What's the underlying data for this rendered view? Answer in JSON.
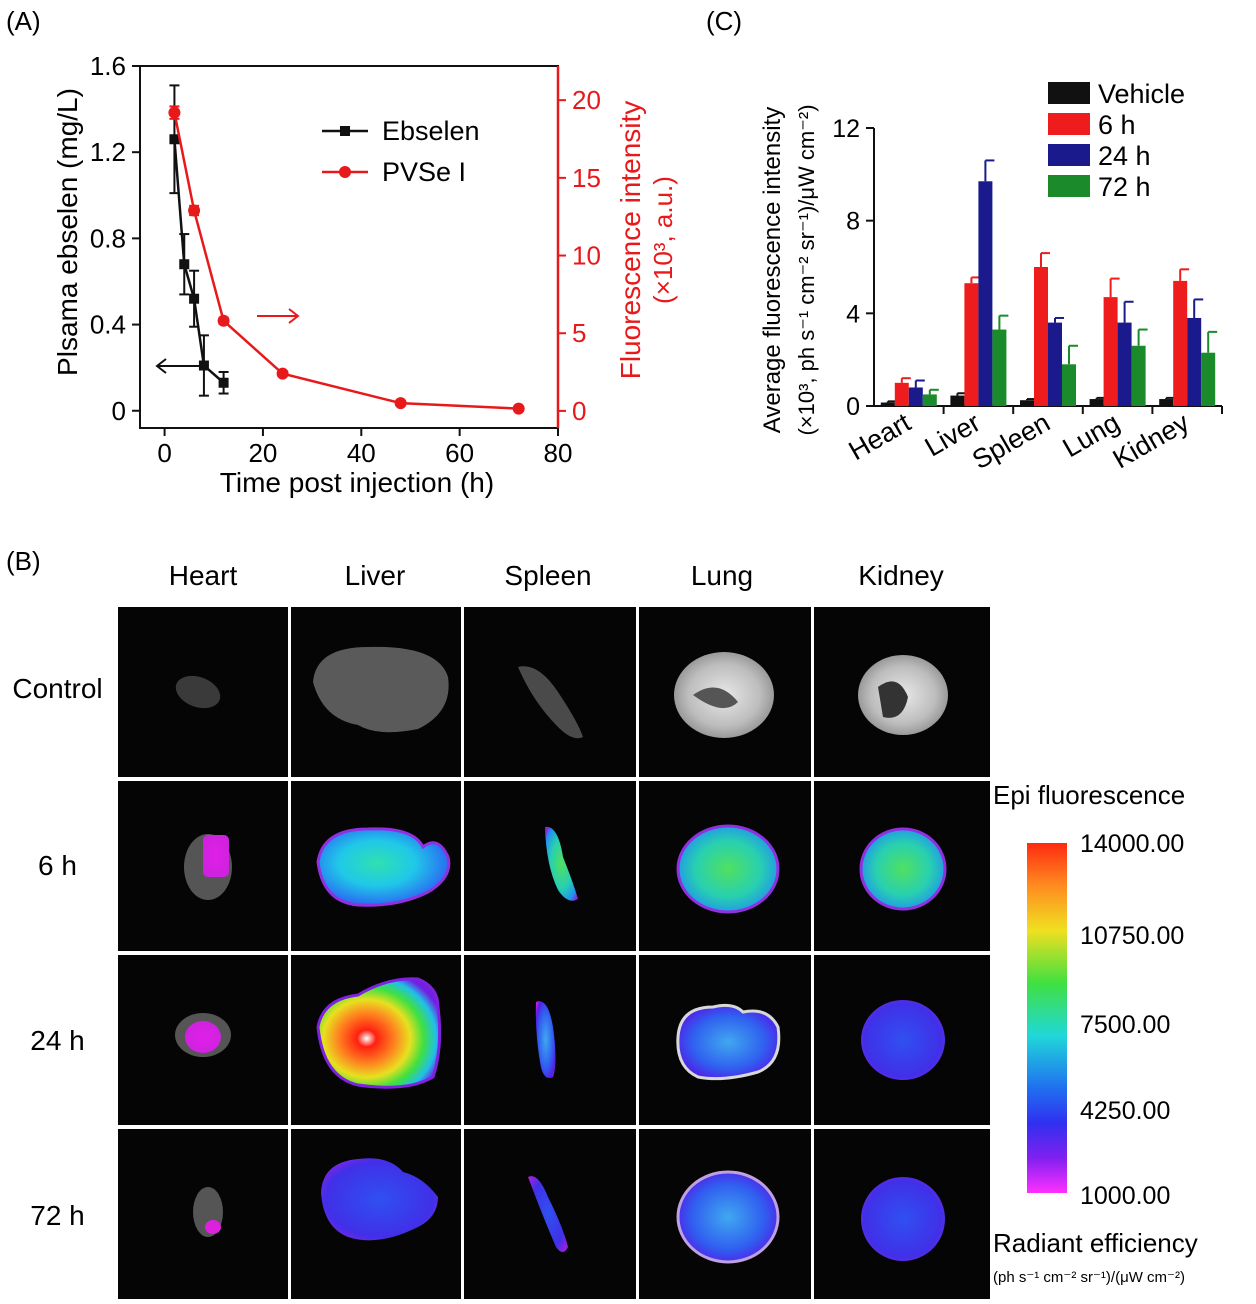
{
  "panelA": {
    "label": "(A)",
    "xlabel": "Time post injection (h)",
    "ylabel_left": "Plsama ebselen (mg/L)",
    "ylabel_right_line1": "Fluorescence intensity",
    "ylabel_right_line2": "(×10³, a.u.)",
    "x_ticks": [
      "0",
      "20",
      "40",
      "60",
      "80"
    ],
    "y_left_ticks": [
      "0",
      "0.4",
      "0.8",
      "1.2",
      "1.6"
    ],
    "y_right_ticks": [
      "0",
      "5",
      "10",
      "15",
      "20"
    ],
    "legend": [
      "Ebselen",
      "PVSe I"
    ],
    "colors": {
      "ebselen": "#111111",
      "pvse": "#e8191b"
    }
  },
  "panelB": {
    "label": "(B)",
    "columns": [
      "Heart",
      "Liver",
      "Spleen",
      "Lung",
      "Kidney"
    ],
    "rows": [
      "Control",
      "6 h",
      "24 h",
      "72 h"
    ],
    "colorbar": {
      "title": "Epi fluorescence",
      "ticks": [
        "14000.00",
        "10750.00",
        "7500.00",
        "4250.00",
        "1000.00"
      ],
      "label": "Radiant efficiency",
      "unit": "(ph s⁻¹ cm⁻² sr⁻¹)/(μW cm⁻²)"
    }
  },
  "panelC": {
    "label": "(C)",
    "ylabel_line1": "Average fluorescence intensity",
    "ylabel_line2": "(×10³, ph s⁻¹ cm⁻² sr⁻¹)/μW cm⁻²)",
    "y_ticks": [
      "0",
      "4",
      "8",
      "12"
    ],
    "legend": [
      "Vehicle",
      "6 h",
      "24 h",
      "72 h"
    ],
    "colors": [
      "#111111",
      "#ee1c1c",
      "#1a1a8c",
      "#1a8a2a"
    ]
  },
  "chart_data": [
    {
      "type": "line",
      "title": "",
      "xlabel": "Time post injection (h)",
      "ylabel": "Plsama ebselen (mg/L)",
      "y2label": "Fluorescence intensity (×10³, a.u.)",
      "xlim": [
        -5,
        80
      ],
      "ylim": [
        -0.08,
        1.6
      ],
      "y2lim": [
        -1.1,
        22.2
      ],
      "series": [
        {
          "name": "Ebselen",
          "axis": "left",
          "x": [
            2,
            4,
            6,
            8,
            12
          ],
          "y": [
            1.26,
            0.68,
            0.52,
            0.21,
            0.13
          ],
          "err": [
            0.25,
            0.14,
            0.13,
            0.14,
            0.05
          ]
        },
        {
          "name": "PVSe I",
          "axis": "right",
          "x": [
            2,
            6,
            12,
            24,
            48,
            72
          ],
          "y": [
            19.2,
            12.9,
            5.8,
            2.4,
            0.5,
            0.15
          ],
          "err": [
            0.4,
            0.3,
            0.2,
            0.1,
            0.1,
            0.05
          ]
        }
      ]
    },
    {
      "type": "bar",
      "title": "",
      "ylabel": "Average fluorescence intensity (×10³, ph s⁻¹ cm⁻² sr⁻¹)/μW cm⁻²)",
      "categories": [
        "Heart",
        "Liver",
        "Spleen",
        "Lung",
        "Kidney"
      ],
      "ylim": [
        0,
        12
      ],
      "series": [
        {
          "name": "Vehicle",
          "values": [
            0.15,
            0.45,
            0.25,
            0.3,
            0.3
          ],
          "err": [
            0.05,
            0.1,
            0.05,
            0.05,
            0.05
          ]
        },
        {
          "name": "6 h",
          "values": [
            1.0,
            5.3,
            6.0,
            4.7,
            5.4
          ],
          "err": [
            0.2,
            0.25,
            0.6,
            0.8,
            0.5
          ]
        },
        {
          "name": "24 h",
          "values": [
            0.8,
            9.7,
            3.6,
            3.6,
            3.8
          ],
          "err": [
            0.3,
            0.9,
            0.2,
            0.9,
            0.8
          ]
        },
        {
          "name": "72 h",
          "values": [
            0.5,
            3.3,
            1.8,
            2.6,
            2.3
          ],
          "err": [
            0.2,
            0.6,
            0.8,
            0.7,
            0.9
          ]
        }
      ]
    }
  ]
}
